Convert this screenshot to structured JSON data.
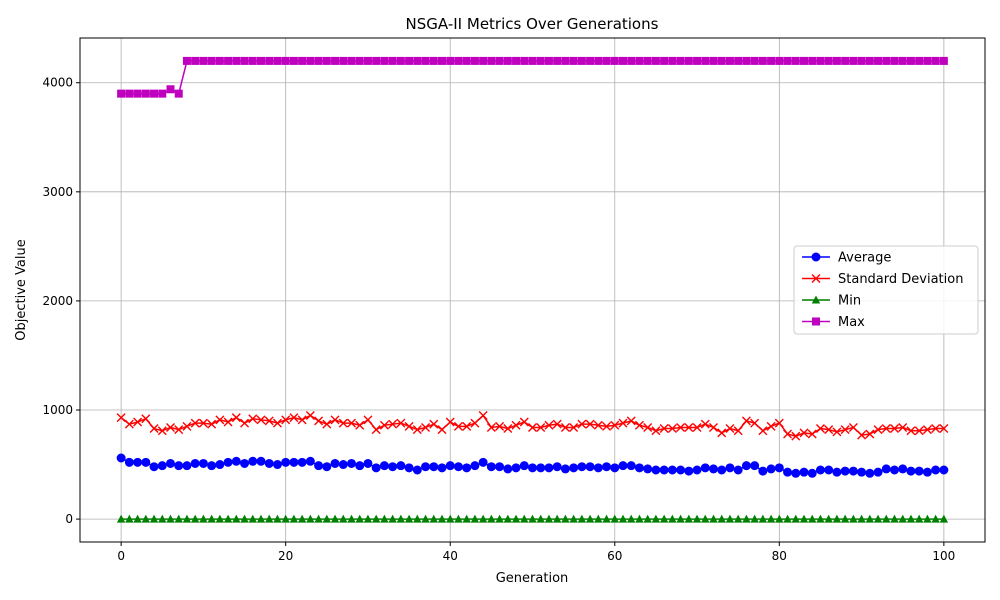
{
  "chart_data": {
    "type": "line",
    "title": "NSGA-II Metrics Over Generations",
    "xlabel": "Generation",
    "ylabel": "Objective Value",
    "xlim": [
      -5,
      105
    ],
    "ylim": [
      -210,
      4410
    ],
    "xticks": [
      0,
      20,
      40,
      60,
      80,
      100
    ],
    "yticks": [
      0,
      1000,
      2000,
      3000,
      4000
    ],
    "grid": true,
    "legend_position": "center-right",
    "x": [
      0,
      1,
      2,
      3,
      4,
      5,
      6,
      7,
      8,
      9,
      10,
      11,
      12,
      13,
      14,
      15,
      16,
      17,
      18,
      19,
      20,
      21,
      22,
      23,
      24,
      25,
      26,
      27,
      28,
      29,
      30,
      31,
      32,
      33,
      34,
      35,
      36,
      37,
      38,
      39,
      40,
      41,
      42,
      43,
      44,
      45,
      46,
      47,
      48,
      49,
      50,
      51,
      52,
      53,
      54,
      55,
      56,
      57,
      58,
      59,
      60,
      61,
      62,
      63,
      64,
      65,
      66,
      67,
      68,
      69,
      70,
      71,
      72,
      73,
      74,
      75,
      76,
      77,
      78,
      79,
      80,
      81,
      82,
      83,
      84,
      85,
      86,
      87,
      88,
      89,
      90,
      91,
      92,
      93,
      94,
      95,
      96,
      97,
      98,
      99,
      100
    ],
    "series": [
      {
        "name": "Average",
        "color": "#0000ff",
        "marker": "circle",
        "values": [
          560,
          520,
          520,
          520,
          480,
          490,
          510,
          490,
          490,
          510,
          510,
          490,
          500,
          520,
          530,
          510,
          530,
          530,
          510,
          500,
          520,
          520,
          520,
          530,
          490,
          480,
          510,
          500,
          510,
          490,
          510,
          470,
          490,
          480,
          490,
          470,
          450,
          480,
          480,
          470,
          490,
          480,
          470,
          490,
          520,
          480,
          480,
          460,
          470,
          490,
          470,
          470,
          470,
          480,
          460,
          470,
          480,
          480,
          470,
          480,
          470,
          490,
          490,
          470,
          460,
          450,
          450,
          450,
          450,
          440,
          450,
          470,
          460,
          450,
          470,
          450,
          490,
          490,
          440,
          460,
          470,
          430,
          420,
          430,
          420,
          450,
          450,
          430,
          440,
          440,
          430,
          420,
          430,
          460,
          450,
          460,
          440,
          440,
          430,
          450,
          450
        ]
      },
      {
        "name": "Standard Deviation",
        "color": "#ff0000",
        "marker": "x",
        "values": [
          930,
          870,
          890,
          920,
          830,
          810,
          840,
          820,
          850,
          880,
          880,
          870,
          910,
          890,
          930,
          880,
          920,
          910,
          900,
          880,
          910,
          930,
          910,
          950,
          900,
          870,
          910,
          880,
          880,
          860,
          910,
          820,
          860,
          870,
          880,
          850,
          820,
          840,
          870,
          820,
          890,
          850,
          850,
          880,
          950,
          840,
          850,
          830,
          860,
          890,
          840,
          840,
          860,
          870,
          840,
          840,
          870,
          870,
          860,
          850,
          860,
          880,
          900,
          860,
          840,
          810,
          830,
          830,
          840,
          840,
          840,
          870,
          840,
          790,
          830,
          810,
          900,
          880,
          810,
          850,
          880,
          780,
          760,
          790,
          780,
          830,
          820,
          800,
          820,
          840,
          770,
          780,
          820,
          830,
          830,
          840,
          810,
          810,
          820,
          830,
          830
        ]
      },
      {
        "name": "Min",
        "color": "#008000",
        "marker": "triangle",
        "values": [
          0,
          0,
          0,
          0,
          0,
          0,
          0,
          0,
          0,
          0,
          0,
          0,
          0,
          0,
          0,
          0,
          0,
          0,
          0,
          0,
          0,
          0,
          0,
          0,
          0,
          0,
          0,
          0,
          0,
          0,
          0,
          0,
          0,
          0,
          0,
          0,
          0,
          0,
          0,
          0,
          0,
          0,
          0,
          0,
          0,
          0,
          0,
          0,
          0,
          0,
          0,
          0,
          0,
          0,
          0,
          0,
          0,
          0,
          0,
          0,
          0,
          0,
          0,
          0,
          0,
          0,
          0,
          0,
          0,
          0,
          0,
          0,
          0,
          0,
          0,
          0,
          0,
          0,
          0,
          0,
          0,
          0,
          0,
          0,
          0,
          0,
          0,
          0,
          0,
          0,
          0,
          0,
          0,
          0,
          0,
          0,
          0,
          0,
          0,
          0,
          0
        ]
      },
      {
        "name": "Max",
        "color": "#bf00bf",
        "marker": "square",
        "values": [
          3900,
          3900,
          3900,
          3900,
          3900,
          3900,
          3940,
          3900,
          4200,
          4200,
          4200,
          4200,
          4200,
          4200,
          4200,
          4200,
          4200,
          4200,
          4200,
          4200,
          4200,
          4200,
          4200,
          4200,
          4200,
          4200,
          4200,
          4200,
          4200,
          4200,
          4200,
          4200,
          4200,
          4200,
          4200,
          4200,
          4200,
          4200,
          4200,
          4200,
          4200,
          4200,
          4200,
          4200,
          4200,
          4200,
          4200,
          4200,
          4200,
          4200,
          4200,
          4200,
          4200,
          4200,
          4200,
          4200,
          4200,
          4200,
          4200,
          4200,
          4200,
          4200,
          4200,
          4200,
          4200,
          4200,
          4200,
          4200,
          4200,
          4200,
          4200,
          4200,
          4200,
          4200,
          4200,
          4200,
          4200,
          4200,
          4200,
          4200,
          4200,
          4200,
          4200,
          4200,
          4200,
          4200,
          4200,
          4200,
          4200,
          4200,
          4200,
          4200,
          4200,
          4200,
          4200,
          4200,
          4200,
          4200,
          4200,
          4200,
          4200
        ]
      }
    ]
  }
}
